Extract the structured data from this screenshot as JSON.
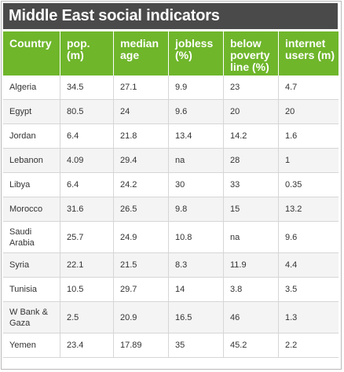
{
  "title": "Middle East social indicators",
  "colors": {
    "header": "#6fb62b",
    "title_bar": "#4a4a4a"
  },
  "chart_data": {
    "type": "table",
    "title": "Middle East social indicators",
    "columns": [
      "Country",
      "pop. (m)",
      "median age",
      "jobless (%)",
      "below poverty line (%)",
      "internet users (m)"
    ],
    "rows": [
      [
        "Algeria",
        "34.5",
        "27.1",
        "9.9",
        "23",
        "4.7"
      ],
      [
        "Egypt",
        "80.5",
        "24",
        "9.6",
        "20",
        "20"
      ],
      [
        "Jordan",
        "6.4",
        "21.8",
        "13.4",
        "14.2",
        "1.6"
      ],
      [
        "Lebanon",
        "4.09",
        "29.4",
        "na",
        "28",
        "1"
      ],
      [
        "Libya",
        "6.4",
        "24.2",
        "30",
        "33",
        "0.35"
      ],
      [
        "Morocco",
        "31.6",
        "26.5",
        "9.8",
        "15",
        "13.2"
      ],
      [
        "Saudi Arabia",
        "25.7",
        "24.9",
        "10.8",
        "na",
        "9.6"
      ],
      [
        "Syria",
        "22.1",
        "21.5",
        "8.3",
        "11.9",
        "4.4"
      ],
      [
        "Tunisia",
        "10.5",
        "29.7",
        "14",
        "3.8",
        "3.5"
      ],
      [
        "W Bank & Gaza",
        "2.5",
        "20.9",
        "16.5",
        "46",
        "1.3"
      ],
      [
        "Yemen",
        "23.4",
        "17.89",
        "35",
        "45.2",
        "2.2"
      ]
    ]
  }
}
